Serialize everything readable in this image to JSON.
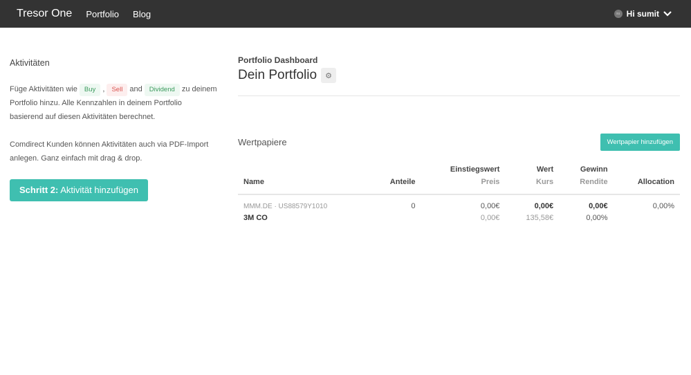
{
  "nav": {
    "brand": "Tresor One",
    "links": [
      "Portfolio",
      "Blog"
    ],
    "avatar_initials": "su",
    "user": "Hi sumit"
  },
  "sidebar": {
    "title": "Aktivitäten",
    "p1_a": "Füge Aktivitäten wie",
    "buy": "Buy",
    "comma": ",",
    "sell": "Sell",
    "and": "and",
    "dividend": "Dividend",
    "p1_b": "zu deinem Portfolio hinzu. Alle Kennzahlen in deinem Portfolio basierend auf diesen Aktivitäten berechnet.",
    "p2": "Comdirect Kunden können Aktivitäten auch via PDF-Import anlegen. Ganz einfach mit drag & drop.",
    "cta_bold": "Schritt 2:",
    "cta": "Aktivität hinzufügen"
  },
  "main": {
    "subtitle": "Portfolio Dashboard",
    "title": "Dein Portfolio",
    "section": "Wertpapiere",
    "add_button": "Wertpapier hinzufügen",
    "headers": {
      "name": "Name",
      "anteile": "Anteile",
      "einstieg": "Einstiegswert",
      "preis": "Preis",
      "wert": "Wert",
      "kurs": "Kurs",
      "gewinn": "Gewinn",
      "rendite": "Rendite",
      "allocation": "Allocation"
    },
    "rows": [
      {
        "isin": "MMM.DE · US88579Y1010",
        "name": "3M CO",
        "anteile": "0",
        "einstieg": "0,00€",
        "preis": "0,00€",
        "wert": "0,00€",
        "kurs": "135,58€",
        "gewinn": "0,00€",
        "rendite": "0,00%",
        "allocation": "0,00%"
      }
    ]
  },
  "colors": {
    "accent": "#3fbfb0",
    "nav": "#333333"
  }
}
